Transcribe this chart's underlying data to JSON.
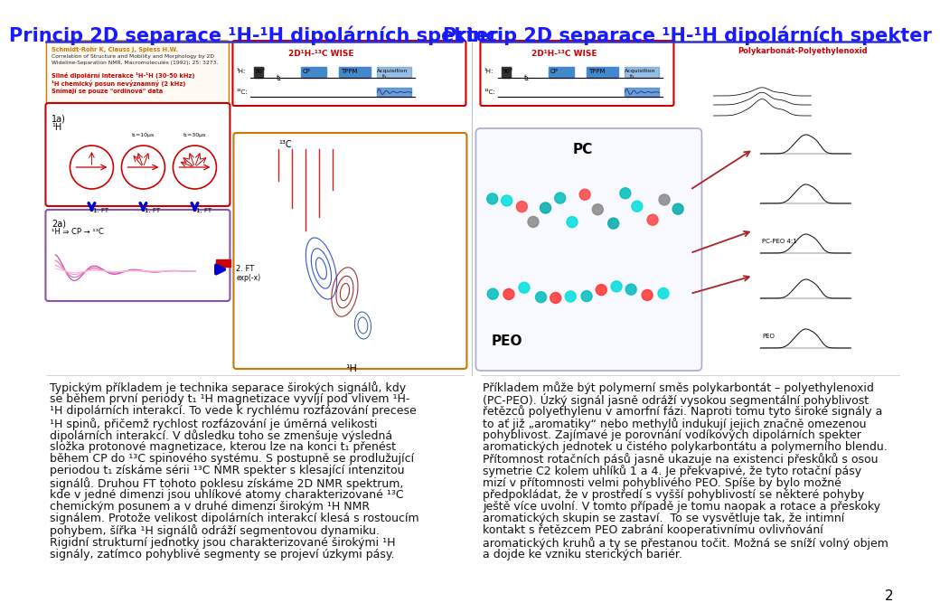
{
  "title_left": "Princip 2D separace ¹H-¹H dipolárních spekter",
  "title_right": "Princip 2D separace ¹H-¹H dipolárních spekter",
  "background_color": "#ffffff",
  "title_color": "#1a1aff",
  "title_fontsize": 15,
  "page_number": "2",
  "left_text_lines": [
    "Typickým příkladem je technika separace širokých signálů, kdy",
    "se během první periody t₁ ¹H magnetizace vyvíjí pod vlivem ¹H-",
    "¹H dipolárních interakcí. To vede k rychlému rozfázování precese",
    "¹H spinů, přičemž rychlost rozfázování je úměrná velikosti",
    "dipolárních interakcí. V důsledku toho se zmenšuje výsledná",
    "složka protonové magnetizace, kterou lze na konci t₁ přenést",
    "během CP do ¹³C spinového systému. S postupně se prodlužující",
    "periodou t₁ získáme sérii ¹³C NMR spekter s klesající intenzitou",
    "signálů. Druhou FT tohoto poklesu získáme 2D NMR spektrum,",
    "kde v jedné dimenzi jsou uhlíkové atomy charakterizované ¹³C",
    "chemickým posunem a v druhé dimenzi širokým ¹H NMR",
    "signálem. Protože velikost dipolárních interakcí klesá s rostoucím",
    "pohybem, šířka ¹H signálů odráží segmentovou dynamiku.",
    "Rigidní strukturní jednotky jsou charakterizované širokými ¹H",
    "signály, zatímco pohyblivé segmenty se projeví úzkymi pásy."
  ],
  "right_text_lines": [
    "Příkladem může být polymerní směs polykarbontát – polyethylenoxid",
    "(PC-PEO). Úzký signál jasně odráží vysokou segmentální pohyblivost",
    "řetězců polyethylenu v amorfní fázi. Naproti tomu tyto široké signály a",
    "to ať již „aromatiky“ nebo methylů indukují jejich značně omezenou",
    "pohyblivost. Zajímavé je porovnání vodíkových dipolárních spekter",
    "aromatických jednotek u čistého polykarbontátu a polymerního blendu.",
    "Přítomnost rotačních pásů jasně ukazuje na existenci přeskůků s osou",
    "symetrie C2 kolem uhlíků 1 a 4. Je překvapivé, že tyto rotační pásy",
    "mizí v přítomnosti velmi pohyblivého PEO. Spíše by bylo možné",
    "předpokládat, že v prostředí s vyšší pohyblivostí se některé pohyby",
    "ještě více uvolní. V tomto případě je tomu naopak a rotace a přeskoky",
    "aromatických skupin se zastaví.  To se vysvětluje tak, že intimní",
    "kontakt s řetězcem PEO zabrání kooperativnímu ovlivňování",
    "aromatických kruhů a ty se přestanou točit. Možná se sníží volný objem",
    "a dojde ke vzniku sterických bariér."
  ],
  "text_fontsize": 9.0
}
